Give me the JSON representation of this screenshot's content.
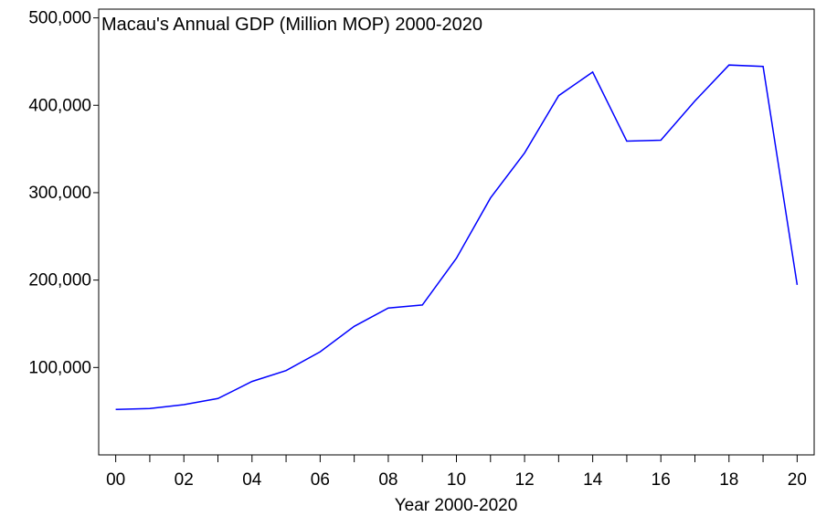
{
  "chart_data": {
    "type": "line",
    "title": "Macau's Annual GDP (Million MOP) 2000-2020",
    "xlabel": "Year 2000-2020",
    "ylabel": "",
    "x": [
      2000,
      2001,
      2002,
      2003,
      2004,
      2005,
      2006,
      2007,
      2008,
      2009,
      2010,
      2011,
      2012,
      2013,
      2014,
      2015,
      2016,
      2017,
      2018,
      2019,
      2020
    ],
    "series": [
      {
        "values": [
          52000,
          53000,
          57500,
          64500,
          84000,
          96500,
          118000,
          147000,
          168000,
          171500,
          225000,
          294000,
          345500,
          411000,
          438000,
          359000,
          360000,
          405000,
          446000,
          444500,
          194500
        ]
      }
    ],
    "xlim": [
      1999.5,
      2020.5
    ],
    "ylim": [
      0,
      510000
    ],
    "yticks": [
      100000,
      200000,
      300000,
      400000,
      500000
    ],
    "ytick_labels": [
      "100,000",
      "200,000",
      "300,000",
      "400,000",
      "500,000"
    ],
    "xtick_labels": [
      "00",
      "02",
      "04",
      "06",
      "08",
      "10",
      "12",
      "14",
      "16",
      "18",
      "20"
    ],
    "line_color": "#0000ff",
    "grid": false,
    "legend": false
  }
}
